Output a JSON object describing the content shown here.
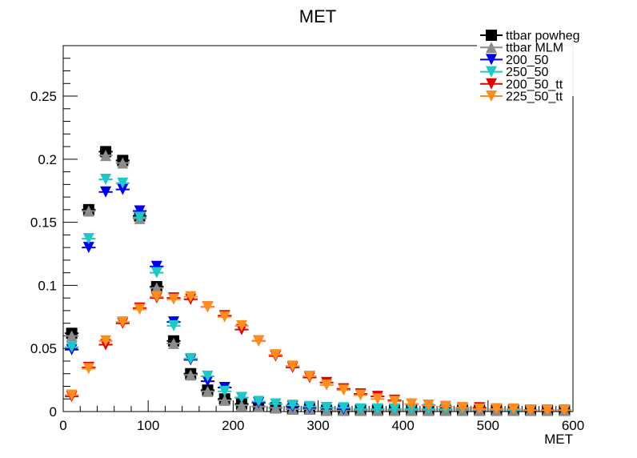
{
  "chart_data": {
    "type": "scatter",
    "title": "MET",
    "xlabel": "MET",
    "ylabel": "",
    "xlim": [
      0,
      600
    ],
    "ylim": [
      0,
      0.29
    ],
    "grid": false,
    "legend_position": "top-right",
    "x_ticks": [
      "0",
      "100",
      "200",
      "300",
      "400",
      "500",
      "600"
    ],
    "y_ticks": [
      "0",
      "0.05",
      "0.1",
      "0.15",
      "0.2",
      "0.25"
    ],
    "x": [
      10,
      30,
      50,
      70,
      90,
      110,
      130,
      150,
      170,
      190,
      210,
      230,
      250,
      270,
      290,
      310,
      330,
      350,
      370,
      390,
      410,
      430,
      450,
      470,
      490,
      510,
      530,
      550,
      570,
      590
    ],
    "series": [
      {
        "name": "ttbar powheg",
        "marker": "square",
        "color": "#000000",
        "values": [
          0.062,
          0.16,
          0.206,
          0.199,
          0.155,
          0.099,
          0.056,
          0.03,
          0.017,
          0.01,
          0.006,
          0.004,
          0.003,
          0.002,
          0.002,
          0.001,
          0.001,
          0.001,
          0.001,
          0.001,
          0.001,
          0.001,
          0.001,
          0.001,
          0.001,
          0.001,
          0.001,
          0.001,
          0.001,
          0.001
        ]
      },
      {
        "name": "ttbar MLM",
        "marker": "triangle-up",
        "color": "#8c8c8c",
        "values": [
          0.06,
          0.159,
          0.203,
          0.197,
          0.153,
          0.098,
          0.054,
          0.029,
          0.016,
          0.009,
          0.005,
          0.004,
          0.003,
          0.002,
          0.002,
          0.001,
          0.001,
          0.001,
          0.001,
          0.001,
          0.001,
          0.001,
          0.001,
          0.001,
          0.001,
          0.001,
          0.001,
          0.001,
          0.001,
          0.001
        ]
      },
      {
        "name": "200_50",
        "marker": "triangle-down",
        "color": "#0000e6",
        "values": [
          0.049,
          0.13,
          0.174,
          0.176,
          0.159,
          0.115,
          0.071,
          0.041,
          0.024,
          0.019,
          0.011,
          0.007,
          0.006,
          0.004,
          0.003,
          0.003,
          0.002,
          0.002,
          0.002,
          0.002,
          0.002,
          0.002,
          0.002,
          0.002,
          0.002,
          0.002,
          0.001,
          0.001,
          0.001,
          0.001
        ]
      },
      {
        "name": "250_50",
        "marker": "triangle-down",
        "color": "#1ec8c8",
        "values": [
          0.051,
          0.137,
          0.184,
          0.181,
          0.154,
          0.11,
          0.068,
          0.042,
          0.028,
          0.016,
          0.011,
          0.008,
          0.006,
          0.005,
          0.004,
          0.003,
          0.003,
          0.002,
          0.002,
          0.002,
          0.002,
          0.002,
          0.002,
          0.002,
          0.002,
          0.002,
          0.001,
          0.001,
          0.001,
          0.001
        ]
      },
      {
        "name": "200_50_tt",
        "marker": "triangle-down",
        "color": "#dc0000",
        "values": [
          0.012,
          0.035,
          0.053,
          0.07,
          0.082,
          0.09,
          0.09,
          0.089,
          0.083,
          0.076,
          0.065,
          0.056,
          0.044,
          0.035,
          0.027,
          0.023,
          0.018,
          0.014,
          0.012,
          0.009,
          0.006,
          0.005,
          0.004,
          0.003,
          0.003,
          0.002,
          0.002,
          0.001,
          0.001,
          0.001
        ]
      },
      {
        "name": "225_50_tt",
        "marker": "triangle-down",
        "color": "#ff8c1e",
        "values": [
          0.013,
          0.034,
          0.056,
          0.071,
          0.081,
          0.091,
          0.089,
          0.091,
          0.083,
          0.075,
          0.068,
          0.056,
          0.045,
          0.036,
          0.028,
          0.021,
          0.017,
          0.013,
          0.01,
          0.008,
          0.006,
          0.005,
          0.004,
          0.003,
          0.002,
          0.002,
          0.002,
          0.001,
          0.001,
          0.001
        ]
      }
    ]
  }
}
